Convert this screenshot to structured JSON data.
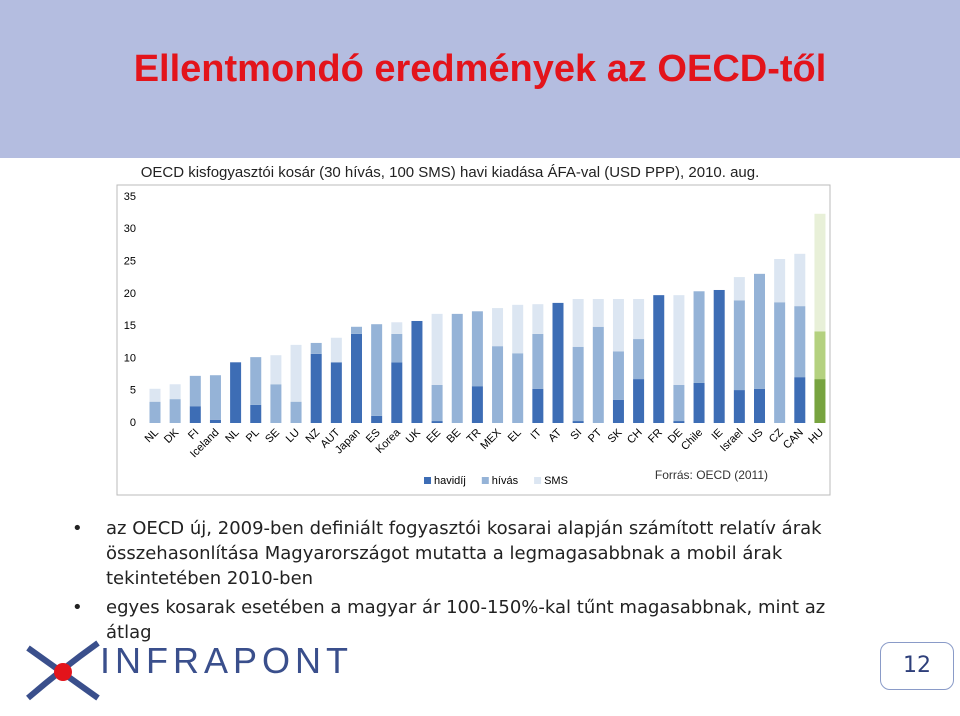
{
  "title": "Ellentmondó eredmények az OECD-től",
  "chart_data": {
    "type": "stacked_bar",
    "title": "OECD kisfogyasztói kosár (30 hívás, 100 SMS) havi kiadása ÁFA-val (USD PPP), 2010. aug.",
    "source": "Forrás: OECD (2011)",
    "categories": [
      "NL",
      "DK",
      "FI",
      "Iceland",
      "NL",
      "PL",
      "SE",
      "LU",
      "NZ",
      "AUT",
      "Japan",
      "ES",
      "Korea",
      "UK",
      "EE",
      "BE",
      "TR",
      "MEX",
      "EL",
      "IT",
      "AT",
      "SI",
      "PT",
      "SK",
      "CH",
      "FR",
      "DE",
      "Chile",
      "IE",
      "Israel",
      "US",
      "CZ",
      "CAN",
      "HU"
    ],
    "series": [
      {
        "name": "havidíj",
        "color": "#3d6db5",
        "values": [
          0,
          0,
          2.6,
          0.5,
          9.4,
          2.8,
          0,
          0,
          10.7,
          9.4,
          13.8,
          1.1,
          9.4,
          15.8,
          0.3,
          0,
          5.7,
          0,
          0,
          5.3,
          18.6,
          0.3,
          0,
          3.6,
          6.8,
          19.8,
          0.3,
          6.2,
          20.6,
          5.1,
          5.3,
          0,
          7.1,
          6.8
        ]
      },
      {
        "name": "hívás",
        "color": "#95b3d7",
        "values": [
          3.3,
          3.7,
          4.7,
          6.9,
          0,
          7.4,
          6.0,
          3.3,
          1.7,
          0,
          1.1,
          14.2,
          4.4,
          0,
          5.6,
          16.9,
          11.6,
          11.9,
          10.8,
          8.5,
          0,
          11.5,
          14.9,
          7.5,
          6.2,
          0,
          5.6,
          14.2,
          0,
          13.9,
          17.8,
          18.7,
          11.0,
          7.4
        ]
      },
      {
        "name": "SMS",
        "color": "#dce6f2",
        "values": [
          2.0,
          2.3,
          0,
          0,
          0,
          0,
          4.5,
          8.8,
          0,
          3.8,
          0,
          0,
          1.8,
          0,
          11.0,
          0,
          0,
          5.9,
          7.5,
          4.6,
          0,
          7.4,
          4.3,
          8.1,
          6.2,
          0,
          13.9,
          0,
          0,
          3.6,
          0,
          6.7,
          8.1,
          18.2
        ]
      }
    ],
    "highlight": {
      "category": "HU",
      "colors": [
        "#77a33f",
        "#b4d17f",
        "#e8f0d8"
      ]
    },
    "ylim": [
      0,
      35
    ],
    "yticks": [
      0,
      5,
      10,
      15,
      20,
      25,
      30,
      35
    ],
    "grid": false
  },
  "bullets": [
    "az OECD új, 2009-ben definiált fogyasztói kosarai alapján számított relatív árak összehasonlítása Magyarországot mutatta a legmagasabbnak a mobil árak tekintetében 2010-ben",
    "egyes kosarak esetében a magyar ár 100-150%-kal tűnt magasabbnak, mint az átlag"
  ],
  "logo_text": "INFRAPONT",
  "page_number": "12"
}
